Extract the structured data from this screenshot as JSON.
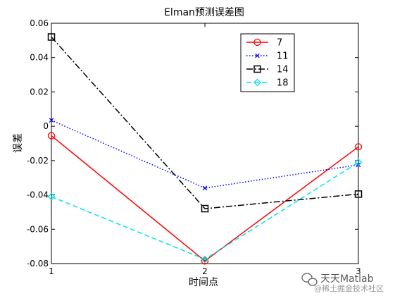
{
  "chart_data": {
    "type": "line",
    "title": "Elman预测误差图",
    "xlabel": "时间点",
    "ylabel": "误差",
    "x": [
      1,
      2,
      3
    ],
    "xticks": [
      "1",
      "2",
      "3"
    ],
    "xlim": [
      1,
      3
    ],
    "ylim": [
      -0.08,
      0.06
    ],
    "yticks": [
      "-0.08",
      "-0.06",
      "-0.04",
      "-0.02",
      "0",
      "0.02",
      "0.04",
      "0.06"
    ],
    "grid": false,
    "legend_position": "top-right",
    "series": [
      {
        "name": "7",
        "values": [
          -0.0055,
          -0.0785,
          -0.012
        ],
        "color": "#ff0000",
        "dash": "solid",
        "marker": "circle"
      },
      {
        "name": "11",
        "values": [
          0.0035,
          -0.036,
          -0.0225
        ],
        "color": "#0000ff",
        "dash": "dotted",
        "marker": "x"
      },
      {
        "name": "14",
        "values": [
          0.052,
          -0.048,
          -0.0395
        ],
        "color": "#000000",
        "dash": "dash-dot",
        "marker": "square"
      },
      {
        "name": "18",
        "values": [
          -0.041,
          -0.0775,
          -0.021
        ],
        "color": "#00e5ee",
        "dash": "dashed",
        "marker": "diamond"
      }
    ]
  },
  "watermark": {
    "brand": "天天Matlab",
    "sub": "@稀土掘金技术社区"
  }
}
